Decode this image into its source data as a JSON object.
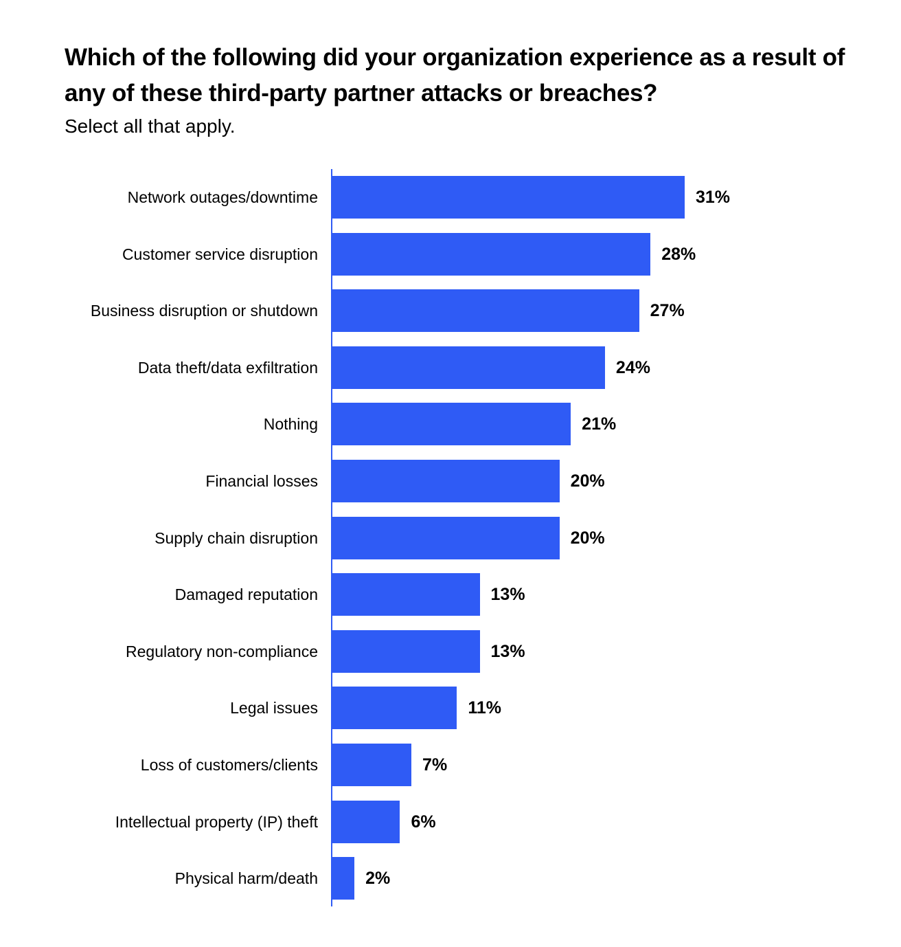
{
  "header": {
    "title": "Which of the following did your organization experience as a result of any of these third-party partner attacks or breaches?",
    "subtitle": "Select all that apply."
  },
  "colors": {
    "bar": "#2F5BF5",
    "text": "#000000",
    "background": "#FFFFFF"
  },
  "chart_data": {
    "type": "bar",
    "orientation": "horizontal",
    "title": "Which of the following did your organization experience as a result of any of these third-party partner attacks or breaches?",
    "subtitle": "Select all that apply.",
    "xlabel": "",
    "ylabel": "",
    "grid": false,
    "legend": null,
    "unit": "%",
    "categories": [
      "Network outages/downtime",
      "Customer service disruption",
      "Business disruption or shutdown",
      "Data theft/data exfiltration",
      "Nothing",
      "Financial losses",
      "Supply chain disruption",
      "Damaged reputation",
      "Regulatory non-compliance",
      "Legal issues",
      "Loss of customers/clients",
      "Intellectual property (IP) theft",
      "Physical harm/death"
    ],
    "values": [
      31,
      28,
      27,
      24,
      21,
      20,
      20,
      13,
      13,
      11,
      7,
      6,
      2
    ],
    "value_labels": [
      "31%",
      "28%",
      "27%",
      "24%",
      "21%",
      "20%",
      "20%",
      "13%",
      "13%",
      "11%",
      "7%",
      "6%",
      "2%"
    ]
  }
}
